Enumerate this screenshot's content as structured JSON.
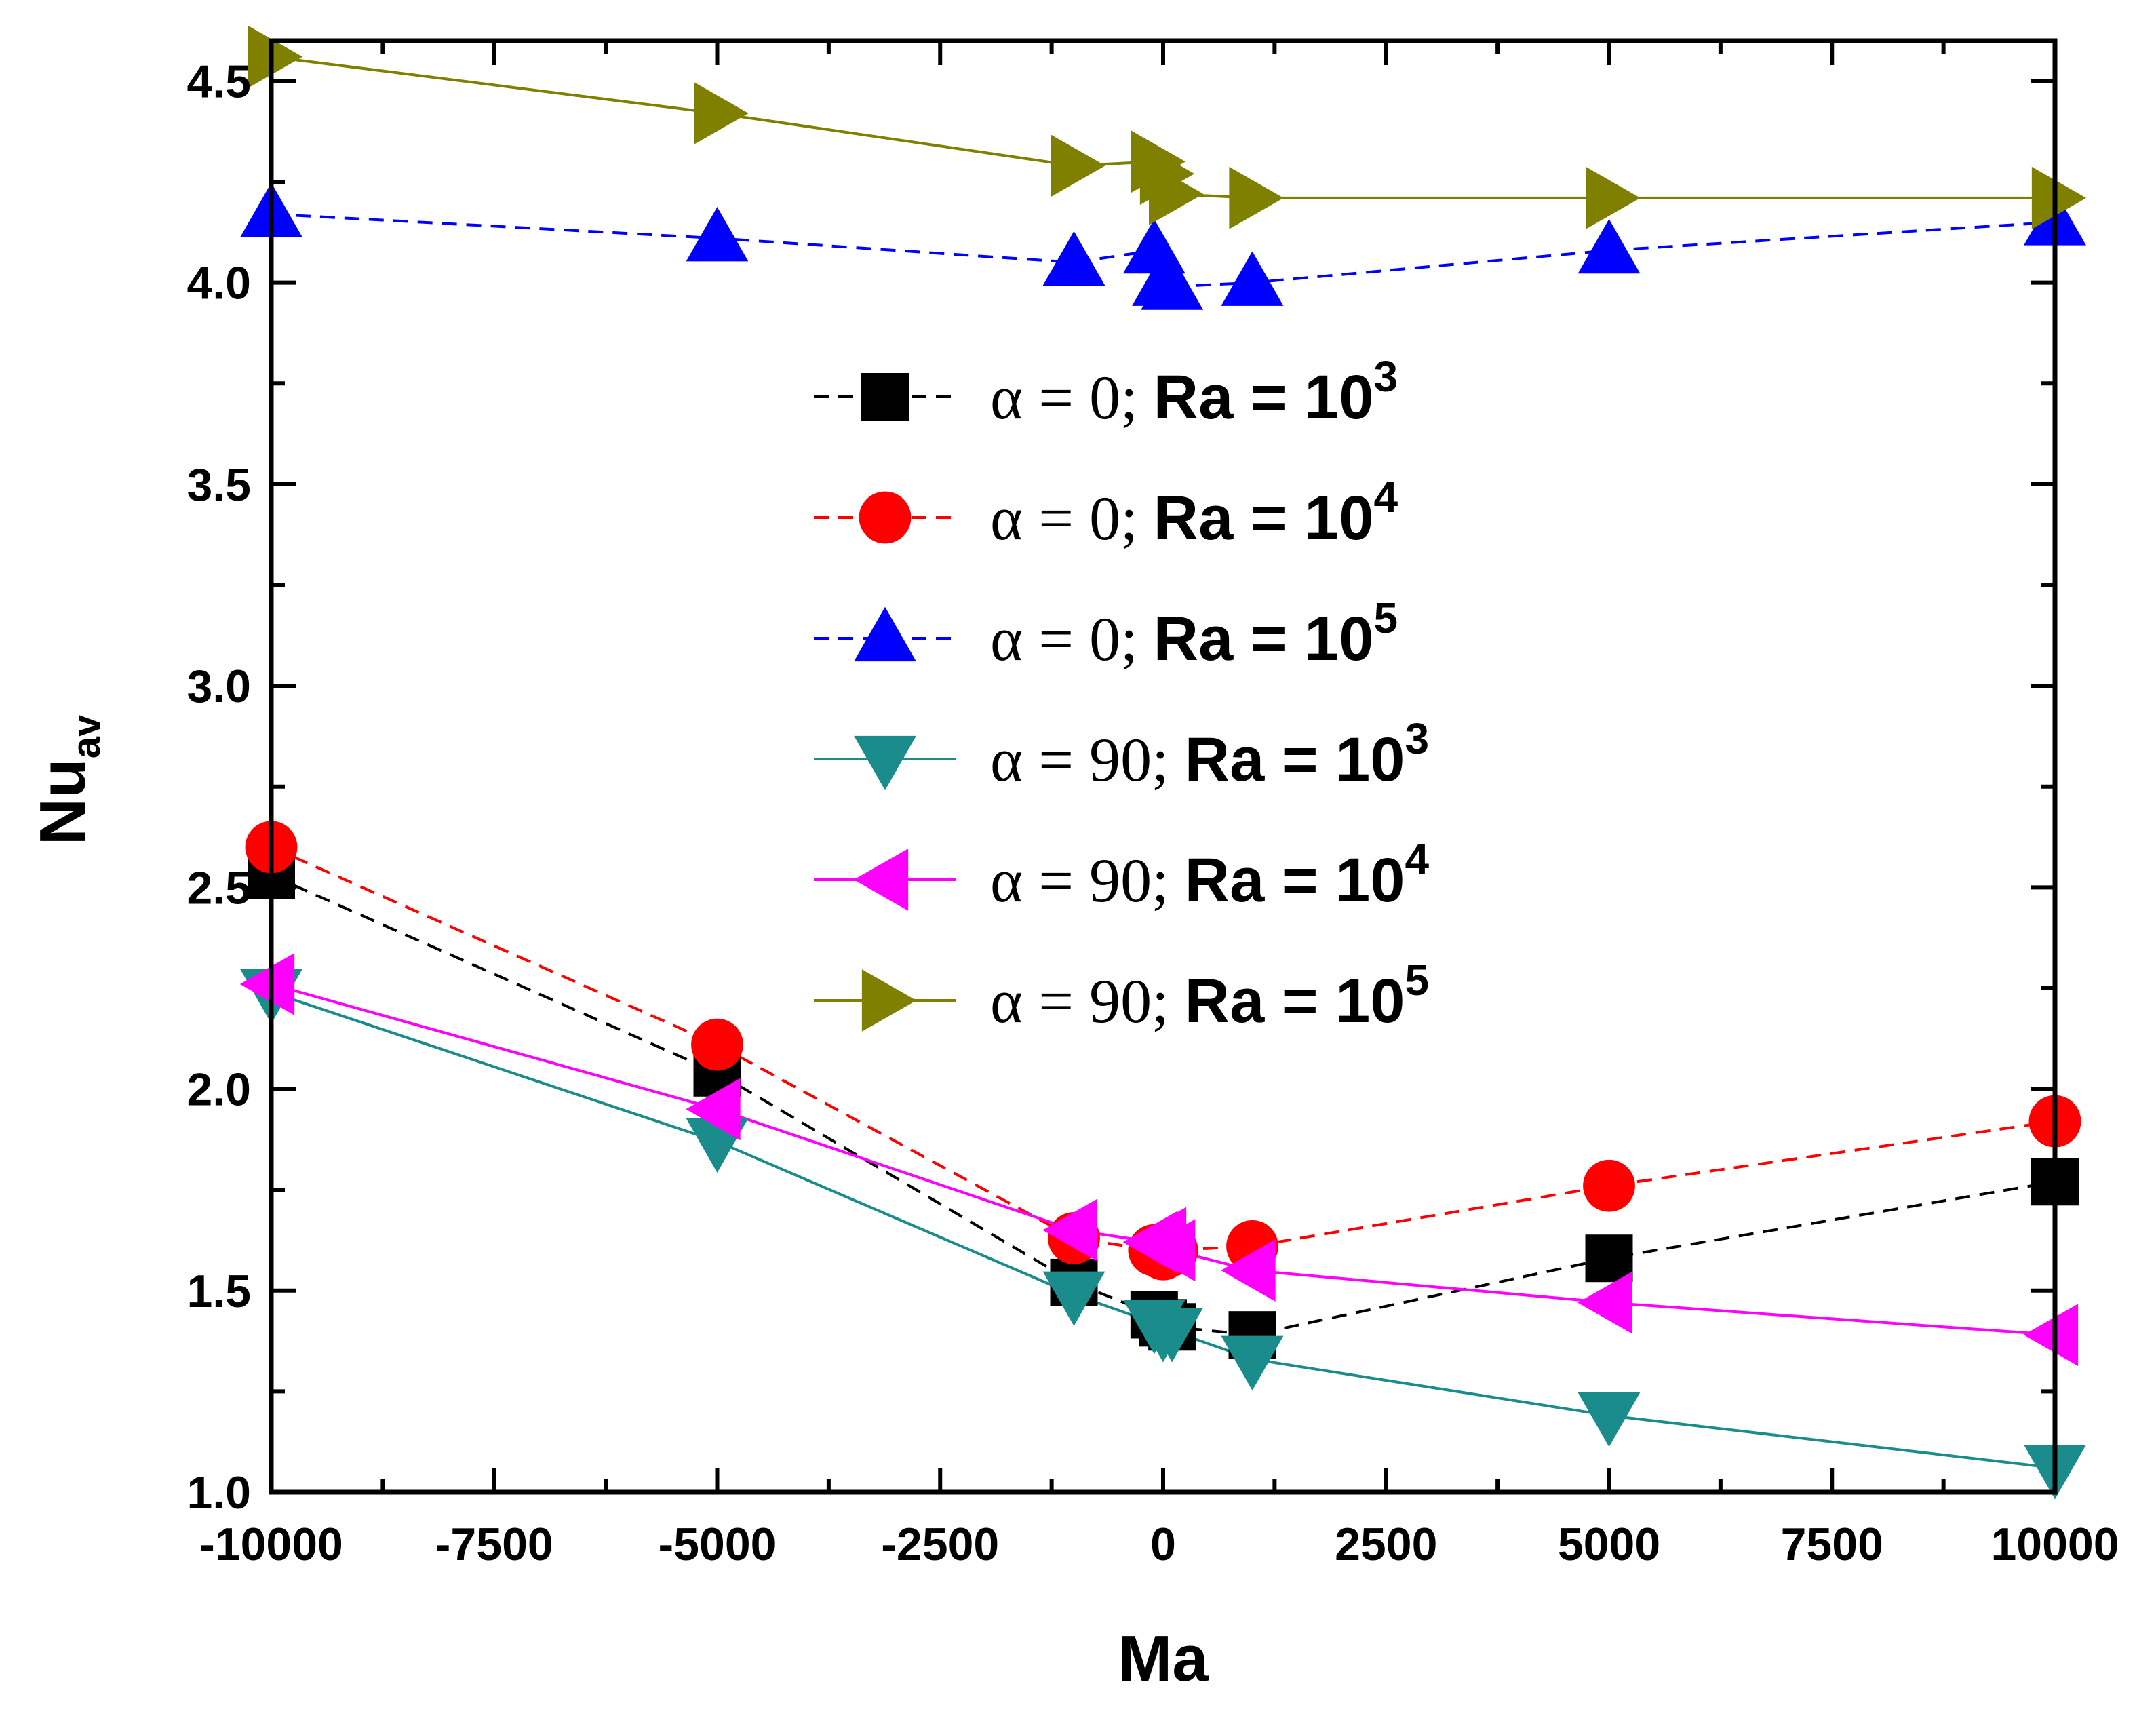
{
  "chart_data": {
    "type": "line",
    "title": "",
    "xlabel": "Ma",
    "ylabel": {
      "base": "Nu",
      "subscript": "av"
    },
    "xlim": [
      -10000,
      10000
    ],
    "ylim": [
      1.0,
      4.6
    ],
    "xticks": [
      -10000,
      -7500,
      -5000,
      -2500,
      0,
      2500,
      5000,
      7500,
      10000
    ],
    "yticks": [
      1.0,
      1.5,
      2.0,
      2.5,
      3.0,
      3.5,
      4.0,
      4.5
    ],
    "legend_position": "center",
    "series": [
      {
        "name": "α = 0; Ra = 10^3",
        "label_prefix": "α = 0;",
        "label_ra": "Ra = 10",
        "label_exp": "3",
        "color": "#000000",
        "line": "dashed",
        "marker": "square",
        "x": [
          -10000,
          -5000,
          -1000,
          -100,
          0,
          100,
          1000,
          5000,
          10000
        ],
        "y": [
          2.53,
          2.04,
          1.52,
          1.44,
          1.42,
          1.41,
          1.39,
          1.58,
          1.77
        ]
      },
      {
        "name": "α = 0; Ra = 10^4",
        "label_prefix": "α = 0;",
        "label_ra": "Ra = 10",
        "label_exp": "4",
        "color": "#ff0000",
        "line": "dashed",
        "marker": "circle",
        "x": [
          -10000,
          -5000,
          -1000,
          -100,
          0,
          100,
          1000,
          5000,
          10000
        ],
        "y": [
          2.6,
          2.11,
          1.63,
          1.6,
          1.59,
          1.6,
          1.61,
          1.76,
          1.92
        ]
      },
      {
        "name": "α = 0; Ra = 10^5",
        "label_prefix": "α = 0;",
        "label_ra": "Ra = 10",
        "label_exp": "5",
        "color": "#0000ff",
        "line": "dashed",
        "marker": "triangle-up",
        "x": [
          -10000,
          -5000,
          -1000,
          -100,
          0,
          100,
          1000,
          5000,
          10000
        ],
        "y": [
          4.17,
          4.11,
          4.05,
          4.08,
          4.0,
          3.99,
          4.0,
          4.08,
          4.15
        ]
      },
      {
        "name": "α = 90; Ra = 10^3",
        "label_prefix": "α = 90;",
        "label_ra": "Ra = 10",
        "label_exp": "3",
        "color": "#1a8c8c",
        "line": "solid",
        "marker": "triangle-down",
        "x": [
          -10000,
          -5000,
          -1000,
          -100,
          0,
          100,
          1000,
          5000,
          10000
        ],
        "y": [
          2.24,
          1.87,
          1.49,
          1.42,
          1.4,
          1.4,
          1.33,
          1.19,
          1.06
        ]
      },
      {
        "name": "α = 90; Ra = 10^4",
        "label_prefix": "α = 90;",
        "label_ra": "Ra = 10",
        "label_exp": "4",
        "color": "#ff00ff",
        "line": "solid",
        "marker": "triangle-left",
        "x": [
          -10000,
          -5000,
          -1000,
          -100,
          0,
          100,
          1000,
          5000,
          10000
        ],
        "y": [
          2.26,
          1.95,
          1.65,
          1.62,
          1.63,
          1.6,
          1.55,
          1.47,
          1.39
        ]
      },
      {
        "name": "α = 90; Ra = 10^5",
        "label_prefix": "α = 90;",
        "label_ra": "Ra = 10",
        "label_exp": "5",
        "color": "#808000",
        "line": "solid",
        "marker": "triangle-right",
        "x": [
          -10000,
          -5000,
          -1000,
          -100,
          0,
          100,
          1000,
          5000,
          10000
        ],
        "y": [
          4.56,
          4.42,
          4.29,
          4.3,
          4.27,
          4.22,
          4.21,
          4.21,
          4.21
        ]
      }
    ]
  }
}
